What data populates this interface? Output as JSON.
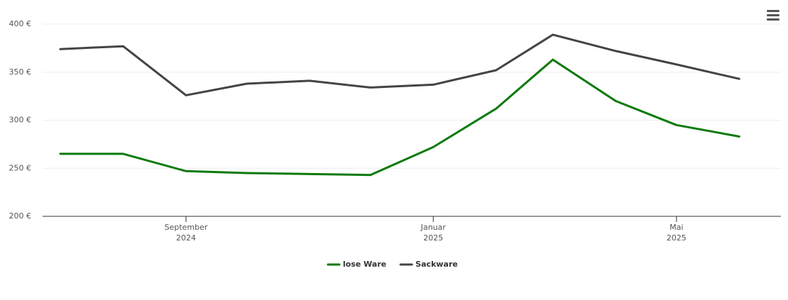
{
  "chart_data": {
    "type": "line",
    "x": [
      "2024-07",
      "2024-08",
      "2024-09",
      "2024-10",
      "2024-11",
      "2024-12",
      "2025-01",
      "2025-02",
      "2025-03",
      "2025-04",
      "2025-05",
      "2025-06"
    ],
    "series": [
      {
        "name": "lose Ware",
        "color": "#0a7a0a",
        "values": [
          265,
          265,
          247,
          245,
          244,
          243,
          272,
          312,
          363,
          320,
          295,
          283
        ]
      },
      {
        "name": "Sackware",
        "color": "#444444",
        "values": [
          374,
          377,
          326,
          338,
          341,
          334,
          337,
          352,
          389,
          372,
          358,
          343
        ]
      }
    ],
    "ylim": [
      200,
      400
    ],
    "yticks": [
      {
        "value": 200,
        "label": "200 €"
      },
      {
        "value": 250,
        "label": "250 €"
      },
      {
        "value": 300,
        "label": "300 €"
      },
      {
        "value": 350,
        "label": "350 €"
      },
      {
        "value": 400,
        "label": "400 €"
      }
    ],
    "xticks": [
      {
        "value": "2024-09",
        "label": "September",
        "sublabel": "2024"
      },
      {
        "value": "2025-01",
        "label": "Januar",
        "sublabel": "2025"
      },
      {
        "value": "2025-05",
        "label": "Mai",
        "sublabel": "2025"
      }
    ],
    "grid": true
  }
}
